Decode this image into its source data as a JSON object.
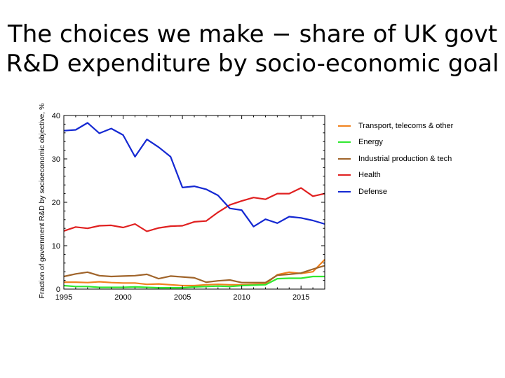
{
  "slide": {
    "title_line1": "The choices we make − share of UK govt",
    "title_line2": "R&D expenditure by socio-economic goal"
  },
  "chart_data": {
    "type": "line",
    "title": "",
    "xlabel": "",
    "ylabel": "Fraction of government R&D by socioeconomic objective, %",
    "xlim": [
      1995,
      2017
    ],
    "ylim": [
      0,
      40
    ],
    "xticks": [
      1995,
      2000,
      2005,
      2010,
      2015
    ],
    "yticks": [
      0,
      10,
      20,
      30,
      40
    ],
    "grid": false,
    "legend_position": "right",
    "x": [
      1995,
      1996,
      1997,
      1998,
      1999,
      2000,
      2001,
      2002,
      2003,
      2004,
      2005,
      2006,
      2007,
      2008,
      2009,
      2010,
      2011,
      2012,
      2013,
      2014,
      2015,
      2016,
      2017
    ],
    "series": [
      {
        "name": "Transport, telecoms & other",
        "color": "#f0821e",
        "values": [
          1.6,
          1.6,
          1.5,
          1.7,
          1.5,
          1.4,
          1.4,
          1.1,
          1.2,
          1.0,
          0.8,
          0.8,
          1.0,
          1.1,
          1.0,
          1.0,
          1.1,
          1.2,
          3.3,
          3.9,
          3.6,
          4.0,
          6.8
        ]
      },
      {
        "name": "Energy",
        "color": "#30e830",
        "values": [
          0.8,
          0.6,
          0.6,
          0.4,
          0.4,
          0.4,
          0.5,
          0.4,
          0.3,
          0.3,
          0.3,
          0.5,
          0.6,
          0.7,
          0.6,
          0.8,
          0.9,
          1.0,
          2.4,
          2.5,
          2.5,
          2.9,
          2.9
        ]
      },
      {
        "name": "Industrial production & tech",
        "color": "#a0642a",
        "values": [
          2.9,
          3.5,
          3.9,
          3.1,
          2.9,
          3.0,
          3.1,
          3.4,
          2.4,
          3.0,
          2.8,
          2.6,
          1.6,
          1.9,
          2.1,
          1.5,
          1.5,
          1.5,
          3.2,
          3.4,
          3.7,
          4.6,
          5.4
        ]
      },
      {
        "name": "Health",
        "color": "#e02020",
        "values": [
          13.4,
          14.3,
          14.0,
          14.6,
          14.7,
          14.2,
          15.0,
          13.3,
          14.1,
          14.5,
          14.6,
          15.5,
          15.7,
          17.7,
          19.4,
          20.3,
          21.1,
          20.7,
          22.0,
          22.0,
          23.3,
          21.4,
          22.0
        ]
      },
      {
        "name": "Defense",
        "color": "#1428d2",
        "values": [
          36.5,
          36.7,
          38.3,
          35.9,
          37.0,
          35.5,
          30.5,
          34.5,
          32.7,
          30.5,
          23.4,
          23.7,
          23.0,
          21.6,
          18.6,
          18.2,
          14.4,
          16.1,
          15.2,
          16.7,
          16.4,
          15.8,
          15.0
        ]
      }
    ]
  }
}
